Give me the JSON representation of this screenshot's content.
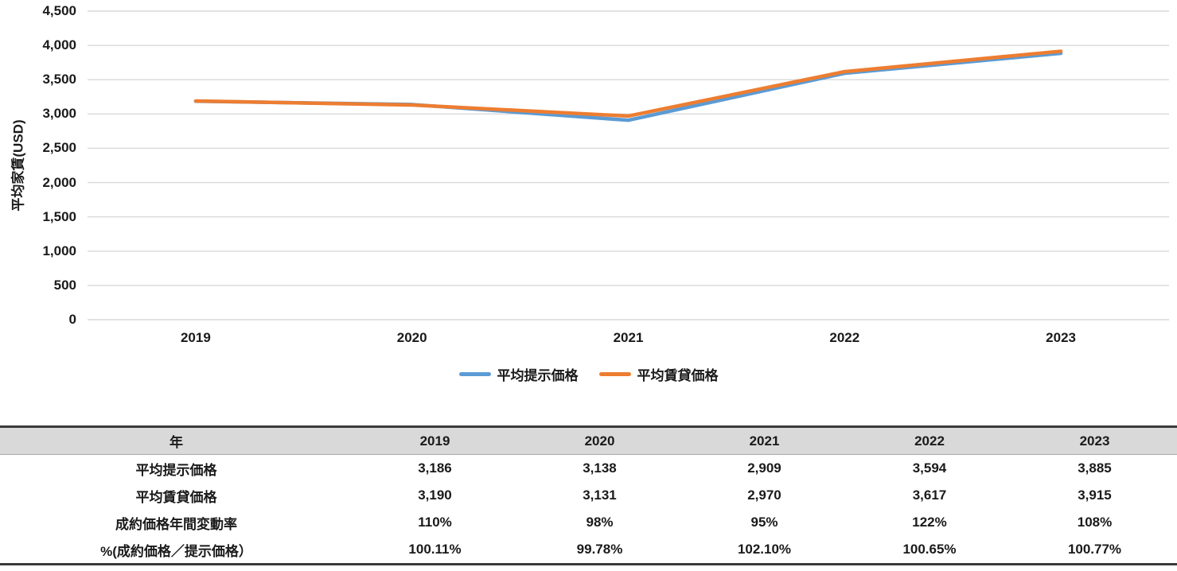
{
  "chart_data": {
    "type": "line",
    "categories": [
      "2019",
      "2020",
      "2021",
      "2022",
      "2023"
    ],
    "series": [
      {
        "name": "平均提示価格",
        "color": "#5B9BD5",
        "values": [
          3186,
          3138,
          2909,
          3594,
          3885
        ]
      },
      {
        "name": "平均賃貸価格",
        "color": "#ED7D31",
        "values": [
          3190,
          3131,
          2970,
          3617,
          3915
        ]
      }
    ],
    "title": "",
    "xlabel": "",
    "ylabel": "平均家賃(USD)",
    "ylim": [
      0,
      4500
    ],
    "ytick_step": 500,
    "grid": true,
    "legend_position": "bottom"
  },
  "table": {
    "header": [
      "年",
      "2019",
      "2020",
      "2021",
      "2022",
      "2023"
    ],
    "rows": [
      {
        "label": "平均提示価格",
        "values": [
          "3,186",
          "3,138",
          "2,909",
          "3,594",
          "3,885"
        ]
      },
      {
        "label": "平均賃貸価格",
        "values": [
          "3,190",
          "3,131",
          "2,970",
          "3,617",
          "3,915"
        ]
      },
      {
        "label": "成約価格年間変動率",
        "values": [
          "110%",
          "98%",
          "95%",
          "122%",
          "108%"
        ]
      },
      {
        "label": "%(成約価格／提示価格）",
        "values": [
          "100.11%",
          "99.78%",
          "102.10%",
          "100.65%",
          "100.77%"
        ]
      }
    ]
  },
  "colors": {
    "offer_series": "#5B9BD5",
    "rental_series": "#ED7D31",
    "gridline": "#D9D9D9",
    "table_header_bg": "#D9D9D9",
    "table_border": "#3A3A3A",
    "text": "#1A1A1A"
  }
}
